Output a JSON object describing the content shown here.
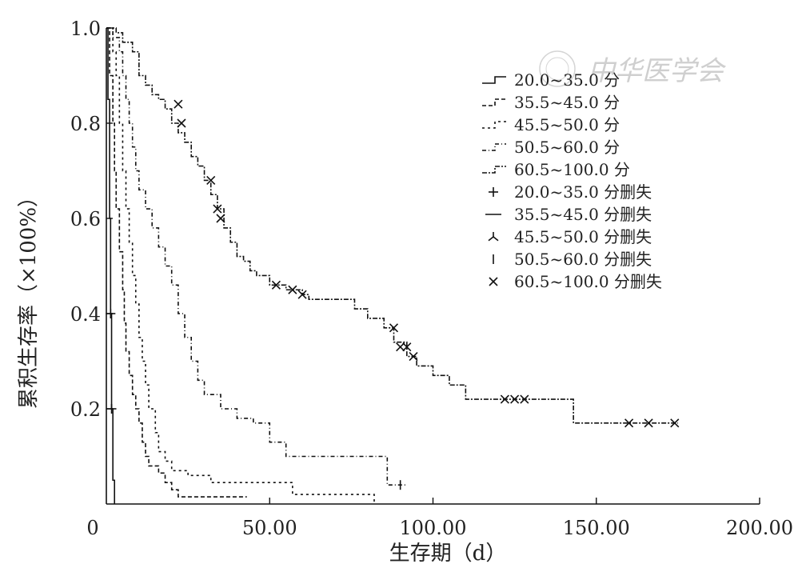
{
  "chart_data": {
    "type": "line",
    "subtype": "kaplan-meier-step",
    "xlabel": "生存期（d）",
    "ylabel": "累积生存率（×100%）",
    "xlim": [
      0,
      200
    ],
    "ylim": [
      0,
      1.0
    ],
    "x_ticks": [
      "0",
      "50.00",
      "100.00",
      "150.00",
      "200.00"
    ],
    "y_ticks": [
      "0.2",
      "0.4",
      "0.6",
      "0.8",
      "1.0"
    ],
    "grid": false,
    "legend_position": "top-right",
    "watermark": "中华医学会",
    "legend": [
      {
        "label": "20.0~35.0 分",
        "kind": "line",
        "dash": ""
      },
      {
        "label": "35.5~45.0 分",
        "kind": "line",
        "dash": "5,3"
      },
      {
        "label": "45.5~50.0 分",
        "kind": "line",
        "dash": "3,4"
      },
      {
        "label": "50.5~60.0 分",
        "kind": "line",
        "dash": "5,3,1,3"
      },
      {
        "label": "60.5~100.0 分",
        "kind": "line",
        "dash": "6,2,2,2"
      },
      {
        "label": "20.0~35.0 分删失",
        "kind": "censor",
        "marker": "plus"
      },
      {
        "label": "35.5~45.0 分删失",
        "kind": "censor",
        "marker": "dash"
      },
      {
        "label": "45.5~50.0 分删失",
        "kind": "censor",
        "marker": "tri"
      },
      {
        "label": "50.5~60.0 分删失",
        "kind": "censor",
        "marker": "vbar"
      },
      {
        "label": "60.5~100.0 分删失",
        "kind": "censor",
        "marker": "x"
      }
    ],
    "series": [
      {
        "name": "20.0~35.0 分",
        "dash": "",
        "marker": "plus",
        "steps": [
          [
            0,
            1.0
          ],
          [
            0.5,
            0.85
          ],
          [
            1,
            0.6
          ],
          [
            1.3,
            0.4
          ],
          [
            1.6,
            0.2
          ],
          [
            2,
            0.05
          ],
          [
            2.5,
            0.0
          ]
        ],
        "censored": [
          [
            1.3,
            0.4
          ],
          [
            1.6,
            0.2
          ]
        ]
      },
      {
        "name": "35.5~45.0 分",
        "dash": "5,3",
        "marker": "dash",
        "steps": [
          [
            0,
            1.0
          ],
          [
            1,
            0.9
          ],
          [
            2,
            0.8
          ],
          [
            2.5,
            0.7
          ],
          [
            3,
            0.62
          ],
          [
            4,
            0.53
          ],
          [
            5,
            0.45
          ],
          [
            5.5,
            0.38
          ],
          [
            6,
            0.32
          ],
          [
            7,
            0.27
          ],
          [
            8,
            0.23
          ],
          [
            9,
            0.2
          ],
          [
            10,
            0.17
          ],
          [
            11,
            0.13
          ],
          [
            12,
            0.1
          ],
          [
            13,
            0.08
          ],
          [
            16,
            0.065
          ],
          [
            18,
            0.045
          ],
          [
            20,
            0.03
          ],
          [
            22,
            0.015
          ],
          [
            28,
            0.015
          ],
          [
            43,
            0.015
          ]
        ],
        "censored": []
      },
      {
        "name": "45.5~50.0 分",
        "dash": "3,4",
        "marker": "tri",
        "steps": [
          [
            0,
            1.0
          ],
          [
            2,
            0.95
          ],
          [
            3,
            0.9
          ],
          [
            4,
            0.8
          ],
          [
            5,
            0.7
          ],
          [
            6,
            0.62
          ],
          [
            7,
            0.55
          ],
          [
            8,
            0.48
          ],
          [
            9,
            0.42
          ],
          [
            10,
            0.35
          ],
          [
            11,
            0.3
          ],
          [
            12,
            0.25
          ],
          [
            13,
            0.2
          ],
          [
            15,
            0.15
          ],
          [
            16,
            0.11
          ],
          [
            18,
            0.09
          ],
          [
            20,
            0.07
          ],
          [
            25,
            0.06
          ],
          [
            32,
            0.045
          ],
          [
            35,
            0.045
          ],
          [
            56,
            0.045
          ],
          [
            57,
            0.02
          ],
          [
            80,
            0.02
          ],
          [
            82,
            0.0
          ]
        ],
        "censored": []
      },
      {
        "name": "50.5~60.0 分",
        "dash": "5,3,1,3",
        "marker": "vbar",
        "steps": [
          [
            0,
            1.0
          ],
          [
            2,
            0.98
          ],
          [
            4,
            0.95
          ],
          [
            5,
            0.9
          ],
          [
            6,
            0.85
          ],
          [
            7,
            0.8
          ],
          [
            8,
            0.75
          ],
          [
            9,
            0.7
          ],
          [
            10,
            0.66
          ],
          [
            12,
            0.62
          ],
          [
            14,
            0.58
          ],
          [
            16,
            0.54
          ],
          [
            18,
            0.5
          ],
          [
            20,
            0.46
          ],
          [
            22,
            0.4
          ],
          [
            24,
            0.35
          ],
          [
            26,
            0.3
          ],
          [
            28,
            0.26
          ],
          [
            30,
            0.23
          ],
          [
            35,
            0.2
          ],
          [
            40,
            0.18
          ],
          [
            45,
            0.17
          ],
          [
            50,
            0.13
          ],
          [
            55,
            0.1
          ],
          [
            60,
            0.1
          ],
          [
            85,
            0.1
          ],
          [
            86,
            0.04
          ],
          [
            92,
            0.04
          ]
        ],
        "censored": [
          [
            90,
            0.04
          ]
        ]
      },
      {
        "name": "60.5~100.0 分",
        "dash": "6,2,2,2",
        "marker": "x",
        "steps": [
          [
            0,
            1.0
          ],
          [
            3,
            0.99
          ],
          [
            5,
            0.97
          ],
          [
            8,
            0.95
          ],
          [
            10,
            0.9
          ],
          [
            12,
            0.88
          ],
          [
            14,
            0.86
          ],
          [
            16,
            0.85
          ],
          [
            18,
            0.83
          ],
          [
            20,
            0.8
          ],
          [
            22,
            0.78
          ],
          [
            24,
            0.76
          ],
          [
            26,
            0.73
          ],
          [
            28,
            0.71
          ],
          [
            30,
            0.68
          ],
          [
            32,
            0.65
          ],
          [
            34,
            0.62
          ],
          [
            36,
            0.58
          ],
          [
            38,
            0.55
          ],
          [
            40,
            0.52
          ],
          [
            42,
            0.51
          ],
          [
            44,
            0.49
          ],
          [
            46,
            0.48
          ],
          [
            50,
            0.46
          ],
          [
            55,
            0.45
          ],
          [
            60,
            0.44
          ],
          [
            62,
            0.43
          ],
          [
            65,
            0.43
          ],
          [
            75,
            0.43
          ],
          [
            76,
            0.41
          ],
          [
            80,
            0.39
          ],
          [
            85,
            0.37
          ],
          [
            88,
            0.34
          ],
          [
            92,
            0.31
          ],
          [
            95,
            0.29
          ],
          [
            100,
            0.27
          ],
          [
            105,
            0.25
          ],
          [
            110,
            0.22
          ],
          [
            115,
            0.22
          ],
          [
            140,
            0.22
          ],
          [
            143,
            0.17
          ],
          [
            160,
            0.17
          ],
          [
            175,
            0.17
          ]
        ],
        "censored": [
          [
            22,
            0.84
          ],
          [
            23,
            0.8
          ],
          [
            32,
            0.68
          ],
          [
            34,
            0.62
          ],
          [
            35,
            0.6
          ],
          [
            52,
            0.46
          ],
          [
            57,
            0.45
          ],
          [
            60,
            0.44
          ],
          [
            88,
            0.37
          ],
          [
            90,
            0.33
          ],
          [
            92,
            0.33
          ],
          [
            94,
            0.31
          ],
          [
            122,
            0.22
          ],
          [
            125,
            0.22
          ],
          [
            128,
            0.22
          ],
          [
            160,
            0.17
          ],
          [
            166,
            0.17
          ],
          [
            174,
            0.17
          ]
        ]
      }
    ]
  }
}
